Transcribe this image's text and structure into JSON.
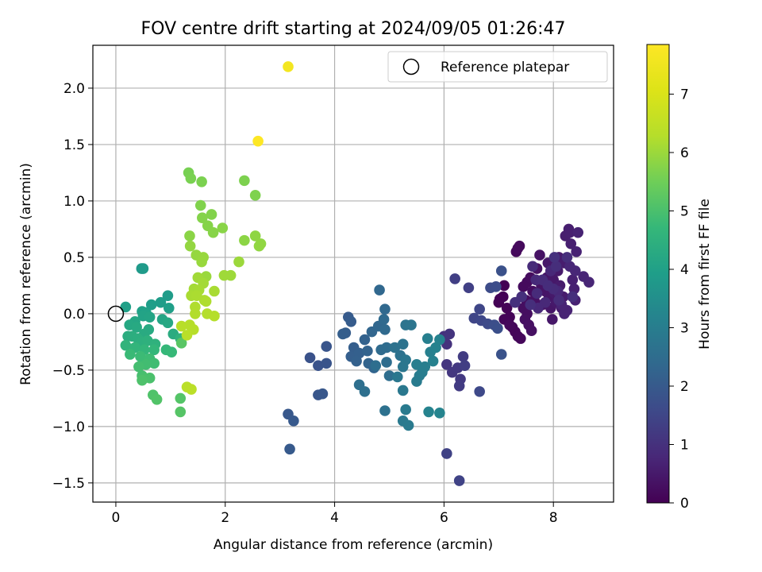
{
  "chart_data": {
    "type": "scatter",
    "title": "FOV centre drift starting at 2024/09/05 01:26:47",
    "xlabel": "Angular distance from reference (arcmin)",
    "ylabel": "Rotation from reference (arcmin)",
    "xlim": [
      -0.42,
      9.1
    ],
    "ylim": [
      -1.67,
      2.38
    ],
    "xticks": [
      0,
      2,
      4,
      6,
      8
    ],
    "yticks": [
      -1.5,
      -1.0,
      -0.5,
      0.0,
      0.5,
      1.0,
      1.5,
      2.0
    ],
    "xtick_labels": [
      "0",
      "2",
      "4",
      "6",
      "8"
    ],
    "ytick_labels": [
      "−1.5",
      "−1.0",
      "−0.5",
      "0.0",
      "0.5",
      "1.0",
      "1.5",
      "2.0"
    ],
    "grid": true,
    "legend": {
      "position": "top-right",
      "entries": [
        {
          "label": "Reference platepar",
          "marker": "open-circle"
        }
      ]
    },
    "reference_point": {
      "x": 0,
      "y": 0
    },
    "colorbar": {
      "label": "Hours from first FF file",
      "range": [
        0,
        7.85
      ],
      "ticks": [
        0,
        1,
        2,
        3,
        4,
        5,
        6,
        7
      ],
      "tick_labels": [
        "0",
        "1",
        "2",
        "3",
        "4",
        "5",
        "6",
        "7"
      ],
      "colormap": "viridis"
    },
    "clusters": [
      {
        "name_hint": "late",
        "hours": [
          7.6,
          7.85
        ],
        "points": [
          [
            3.15,
            2.19
          ],
          [
            2.6,
            1.53
          ]
        ]
      },
      {
        "name_hint": "green",
        "hours": [
          5.6,
          6.4
        ],
        "points": [
          [
            1.33,
            1.25
          ],
          [
            1.37,
            1.2
          ],
          [
            1.57,
            1.17
          ],
          [
            2.35,
            1.18
          ],
          [
            2.55,
            1.05
          ],
          [
            1.55,
            0.96
          ],
          [
            1.75,
            0.88
          ],
          [
            1.58,
            0.85
          ],
          [
            1.68,
            0.78
          ],
          [
            1.78,
            0.72
          ],
          [
            1.95,
            0.76
          ],
          [
            1.35,
            0.69
          ],
          [
            2.35,
            0.65
          ],
          [
            2.55,
            0.69
          ],
          [
            2.65,
            0.62
          ],
          [
            2.62,
            0.6
          ],
          [
            1.36,
            0.6
          ],
          [
            1.47,
            0.52
          ],
          [
            1.6,
            0.5
          ],
          [
            1.57,
            0.46
          ],
          [
            1.65,
            0.33
          ],
          [
            2.25,
            0.46
          ],
          [
            2.1,
            0.34
          ],
          [
            1.98,
            0.34
          ],
          [
            1.5,
            0.32
          ],
          [
            1.6,
            0.27
          ],
          [
            1.43,
            0.22
          ],
          [
            1.52,
            0.21
          ],
          [
            1.8,
            0.2
          ],
          [
            1.38,
            0.16
          ],
          [
            1.48,
            0.16
          ],
          [
            1.62,
            0.12
          ],
          [
            1.65,
            0.11
          ],
          [
            1.45,
            0.06
          ],
          [
            1.45,
            0.0
          ],
          [
            1.67,
            0.0
          ],
          [
            1.8,
            -0.02
          ],
          [
            1.35,
            -0.1
          ],
          [
            1.42,
            -0.14
          ],
          [
            1.2,
            -0.11
          ],
          [
            1.3,
            -0.19
          ],
          [
            1.3,
            -0.65
          ],
          [
            1.38,
            -0.67
          ]
        ]
      },
      {
        "name_hint": "teal",
        "hours": [
          3.8,
          5.2
        ],
        "points": [
          [
            0.47,
            0.4
          ],
          [
            0.5,
            0.4
          ],
          [
            0.95,
            0.16
          ],
          [
            0.82,
            0.1
          ],
          [
            0.65,
            0.08
          ],
          [
            0.97,
            0.05
          ],
          [
            0.18,
            0.06
          ],
          [
            0.48,
            0.02
          ],
          [
            0.55,
            0.01
          ],
          [
            0.5,
            -0.02
          ],
          [
            0.62,
            -0.03
          ],
          [
            0.85,
            -0.05
          ],
          [
            0.35,
            -0.07
          ],
          [
            0.95,
            -0.08
          ],
          [
            0.25,
            -0.1
          ],
          [
            0.38,
            -0.12
          ],
          [
            0.6,
            -0.14
          ],
          [
            0.52,
            -0.18
          ],
          [
            1.05,
            -0.18
          ],
          [
            0.22,
            -0.2
          ],
          [
            0.3,
            -0.2
          ],
          [
            0.4,
            -0.22
          ],
          [
            0.48,
            -0.25
          ],
          [
            0.58,
            -0.24
          ],
          [
            0.72,
            -0.27
          ],
          [
            1.18,
            -0.22
          ],
          [
            0.18,
            -0.28
          ],
          [
            0.35,
            -0.3
          ],
          [
            0.52,
            -0.32
          ],
          [
            0.7,
            -0.32
          ],
          [
            0.92,
            -0.32
          ],
          [
            1.02,
            -0.34
          ],
          [
            0.26,
            -0.36
          ],
          [
            0.45,
            -0.38
          ],
          [
            0.62,
            -0.4
          ],
          [
            0.7,
            -0.44
          ],
          [
            0.55,
            -0.45
          ],
          [
            0.42,
            -0.47
          ],
          [
            0.48,
            -0.55
          ],
          [
            0.52,
            -0.57
          ],
          [
            0.62,
            -0.57
          ],
          [
            0.48,
            -0.59
          ],
          [
            0.68,
            -0.72
          ],
          [
            0.75,
            -0.76
          ],
          [
            1.18,
            -0.75
          ],
          [
            1.18,
            -0.87
          ],
          [
            1.2,
            -0.26
          ]
        ]
      },
      {
        "name_hint": "blue",
        "hours": [
          1.8,
          3.2
        ],
        "points": [
          [
            3.55,
            -0.39
          ],
          [
            3.7,
            -0.46
          ],
          [
            3.85,
            -0.44
          ],
          [
            3.85,
            -0.29
          ],
          [
            3.7,
            -0.72
          ],
          [
            3.78,
            -0.71
          ],
          [
            3.15,
            -0.89
          ],
          [
            3.25,
            -0.95
          ],
          [
            3.18,
            -1.2
          ],
          [
            4.25,
            -0.03
          ],
          [
            4.3,
            -0.07
          ],
          [
            4.2,
            -0.17
          ],
          [
            4.15,
            -0.18
          ],
          [
            4.35,
            -0.3
          ],
          [
            4.3,
            -0.38
          ],
          [
            4.45,
            -0.35
          ],
          [
            4.4,
            -0.42
          ],
          [
            4.55,
            -0.23
          ],
          [
            4.6,
            -0.33
          ],
          [
            4.62,
            -0.44
          ],
          [
            4.72,
            -0.48
          ],
          [
            4.68,
            -0.16
          ],
          [
            4.8,
            -0.11
          ],
          [
            4.82,
            0.21
          ],
          [
            4.92,
            0.04
          ],
          [
            4.9,
            -0.05
          ],
          [
            4.92,
            -0.14
          ],
          [
            4.85,
            -0.32
          ],
          [
            4.95,
            -0.3
          ],
          [
            4.95,
            -0.43
          ],
          [
            5.0,
            -0.55
          ],
          [
            4.75,
            -0.46
          ],
          [
            4.45,
            -0.63
          ],
          [
            4.55,
            -0.69
          ],
          [
            4.92,
            -0.86
          ],
          [
            5.1,
            -0.3
          ],
          [
            5.2,
            -0.37
          ],
          [
            5.25,
            -0.27
          ],
          [
            5.3,
            -0.1
          ],
          [
            5.4,
            -0.1
          ],
          [
            5.3,
            -0.41
          ],
          [
            5.25,
            -0.47
          ],
          [
            5.15,
            -0.56
          ],
          [
            5.25,
            -0.68
          ],
          [
            5.25,
            -0.95
          ],
          [
            5.35,
            -0.99
          ],
          [
            5.3,
            -0.85
          ],
          [
            5.5,
            -0.6
          ],
          [
            5.55,
            -0.55
          ],
          [
            5.6,
            -0.52
          ],
          [
            5.5,
            -0.45
          ],
          [
            5.65,
            -0.47
          ],
          [
            5.7,
            -0.22
          ],
          [
            5.75,
            -0.34
          ],
          [
            5.8,
            -0.42
          ],
          [
            5.85,
            -0.3
          ],
          [
            5.92,
            -0.23
          ],
          [
            5.72,
            -0.87
          ],
          [
            5.92,
            -0.88
          ]
        ]
      },
      {
        "name_hint": "indigo",
        "hours": [
          1.0,
          1.8
        ],
        "points": [
          [
            6.0,
            -0.2
          ],
          [
            6.05,
            -0.27
          ],
          [
            6.1,
            -0.18
          ],
          [
            6.05,
            -0.45
          ],
          [
            6.15,
            -0.52
          ],
          [
            6.25,
            -0.48
          ],
          [
            6.3,
            -0.58
          ],
          [
            6.28,
            -0.64
          ],
          [
            6.35,
            -0.38
          ],
          [
            6.38,
            -0.46
          ],
          [
            6.2,
            0.31
          ],
          [
            6.45,
            0.23
          ],
          [
            6.05,
            -1.24
          ],
          [
            6.28,
            -1.48
          ],
          [
            6.55,
            -0.04
          ],
          [
            6.65,
            0.04
          ],
          [
            6.68,
            -0.06
          ],
          [
            6.65,
            -0.69
          ],
          [
            6.8,
            -0.09
          ],
          [
            6.85,
            0.23
          ],
          [
            6.95,
            0.24
          ],
          [
            6.92,
            -0.1
          ],
          [
            6.98,
            -0.13
          ],
          [
            7.05,
            0.38
          ],
          [
            7.05,
            -0.36
          ]
        ]
      },
      {
        "name_hint": "purple",
        "hours": [
          0.0,
          1.0
        ],
        "points": [
          [
            7.1,
            0.25
          ],
          [
            7.08,
            0.15
          ],
          [
            7.0,
            0.1
          ],
          [
            7.02,
            0.13
          ],
          [
            7.15,
            0.05
          ],
          [
            7.2,
            -0.03
          ],
          [
            7.1,
            -0.05
          ],
          [
            7.25,
            -0.12
          ],
          [
            7.3,
            -0.16
          ],
          [
            7.35,
            -0.2
          ],
          [
            7.4,
            -0.22
          ],
          [
            7.2,
            -0.1
          ],
          [
            7.32,
            0.55
          ],
          [
            7.38,
            0.6
          ],
          [
            7.35,
            0.58
          ],
          [
            7.45,
            0.24
          ],
          [
            7.52,
            0.28
          ],
          [
            7.58,
            0.32
          ],
          [
            7.62,
            0.2
          ],
          [
            7.5,
            0.12
          ],
          [
            7.45,
            0.05
          ],
          [
            7.52,
            0.0
          ],
          [
            7.48,
            -0.05
          ],
          [
            7.55,
            -0.1
          ],
          [
            7.6,
            -0.15
          ],
          [
            7.65,
            0.12
          ],
          [
            7.7,
            0.4
          ],
          [
            7.75,
            0.52
          ],
          [
            7.78,
            0.25
          ],
          [
            7.8,
            0.08
          ],
          [
            7.85,
            0.2
          ],
          [
            7.88,
            0.32
          ],
          [
            7.92,
            0.15
          ],
          [
            7.95,
            0.05
          ],
          [
            7.98,
            -0.05
          ],
          [
            7.9,
            0.45
          ],
          [
            8.0,
            0.3
          ],
          [
            8.02,
            0.18
          ],
          [
            8.05,
            0.1
          ],
          [
            8.08,
            0.38
          ],
          [
            8.1,
            0.5
          ],
          [
            8.12,
            0.25
          ],
          [
            8.15,
            0.05
          ],
          [
            8.18,
            0.15
          ],
          [
            8.2,
            0.45
          ],
          [
            8.22,
            0.69
          ],
          [
            8.28,
            0.75
          ],
          [
            8.3,
            0.72
          ],
          [
            8.32,
            0.62
          ],
          [
            8.35,
            0.3
          ],
          [
            8.38,
            0.22
          ],
          [
            8.4,
            0.12
          ],
          [
            8.42,
            0.55
          ],
          [
            8.45,
            0.72
          ],
          [
            8.25,
            0.03
          ],
          [
            8.2,
            -0.0
          ],
          [
            8.15,
            0.08
          ],
          [
            8.55,
            0.33
          ],
          [
            8.65,
            0.28
          ],
          [
            8.4,
            0.38
          ],
          [
            8.3,
            0.42
          ],
          [
            8.08,
            0.2
          ],
          [
            7.95,
            0.38
          ],
          [
            7.85,
            0.1
          ],
          [
            7.72,
            0.05
          ],
          [
            7.68,
            0.3
          ],
          [
            7.62,
            0.42
          ],
          [
            7.7,
            0.18
          ],
          [
            7.8,
            0.3
          ],
          [
            8.0,
            0.22
          ],
          [
            8.1,
            0.12
          ],
          [
            7.9,
            0.25
          ],
          [
            8.05,
            0.42
          ],
          [
            8.25,
            0.5
          ],
          [
            8.35,
            0.15
          ],
          [
            7.58,
            0.08
          ],
          [
            7.42,
            0.15
          ],
          [
            7.3,
            0.1
          ],
          [
            8.02,
            0.5
          ]
        ]
      }
    ]
  }
}
